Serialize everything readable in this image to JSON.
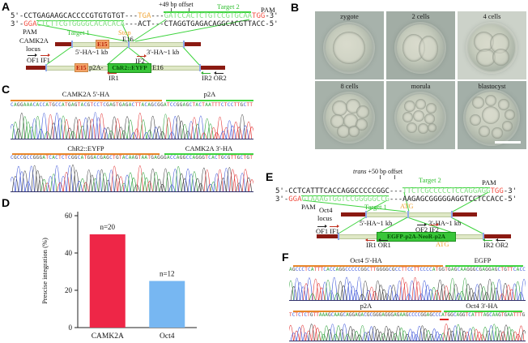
{
  "colors": {
    "target_green": "#3ed43e",
    "sequence_green": "#84e084",
    "pam_red": "#f25044",
    "stop_orange": "#f2a93e",
    "homology_bar_dark_red": "#8b1a12",
    "homology_bar_light": "#dfe8c6",
    "exon_box_orange": "#f5a268",
    "cassette_green": "#38c538",
    "base_A": "#2fa33c",
    "base_C": "#3c55d8",
    "base_G": "#3f3f3f",
    "base_T": "#e23333"
  },
  "panelA": {
    "letter": "A",
    "offset_label": "+49 bp offset",
    "target2_label": "Target 2",
    "pam_top": "PAM",
    "pam_left": "PAM",
    "target1_label": "Target 1",
    "stop_label": "Stop",
    "seq_top": {
      "p1": "5'-CCTGAGAAGCACCCCGTGTGTGT---",
      "stop": "TGA",
      "p2": "---",
      "target": "GATCCACTCTGTCCGTGCAA",
      "pam": "TGG",
      "p3": "-3'"
    },
    "seq_bottom": {
      "p1": "3'-",
      "pam": "GGA",
      "target": "CTCTTCGTGGGGCACACACA",
      "p2": "---ACT---CTAGGTGAGACAGGCACGTTACC-5'"
    },
    "locus_line1": "CAMK2A",
    "locus_line2": "locus",
    "exon_e15": "E15",
    "exon_e16": "E16",
    "ha5_label": "5'-HA~1 kb",
    "ha3_label": "3'-HA~1 kb",
    "of1": "OF1",
    "if1": "IF1",
    "if2": "IF2",
    "ir1": "IR1",
    "ir2": "IR2",
    "or2": "OR2",
    "construct_e15": "E15",
    "construct_prefix": "p2A-",
    "cassette": "ChR2::EYFP",
    "construct_e16": "E16"
  },
  "panelB": {
    "letter": "B",
    "images": [
      {
        "label": "zygote"
      },
      {
        "label": "2 cells"
      },
      {
        "label": "4 cells"
      },
      {
        "label": "8 cells"
      },
      {
        "label": "morula"
      },
      {
        "label": "blastocyst"
      }
    ]
  },
  "panelC": {
    "letter": "C",
    "blocks": [
      {
        "left_label": "CAMK2A 5'-HA",
        "right_label": "p2A",
        "sequence": "CAGGAAACACCATGCCATGAGTACGTCCTCGAGTGAGACTTACAGCGGATCCGGAGCTACTAATTTCTCCTTGCTT"
      },
      {
        "left_label": "ChR2::EYFP",
        "right_label": "CAMK2A 3'-HA",
        "sequence": "CGCCGCCGGGATCACTCTCGGCATGGACGAGCTGTACAAGTAATGAGGGACCAGGCCAGGGTCACTGCGTTGCTGT"
      }
    ]
  },
  "panelD": {
    "letter": "D"
  },
  "chart_data": {
    "type": "bar",
    "categories": [
      "CAMK2A",
      "Oct4"
    ],
    "values": [
      50,
      25
    ],
    "bar_labels": [
      "n=20",
      "n=12"
    ],
    "colors": [
      "#ee2647",
      "#77b7f2"
    ],
    "title": "",
    "xlabel": "",
    "ylabel": "Prescise integration (%)",
    "ylim": [
      0,
      60
    ],
    "yticks": [
      0,
      20,
      40,
      60
    ],
    "grid": false,
    "legend": "none"
  },
  "panelE": {
    "letter": "E",
    "offset_italic": "trans",
    "offset_label": " +50 bp offset",
    "target2_label": "Target 2",
    "pam_right": "PAM",
    "pam_left": "PAM",
    "target1_label": "Target 1",
    "atg_top": "ATG",
    "atg_bottom": "ATG",
    "seq_top": {
      "p1": "5'-CCTCATTTCACCAGGCCCCCGGC---",
      "target": "TTCTCGCCCCCTCCAGGAGG",
      "pam": "TGG",
      "p2": "-3'"
    },
    "seq_bottom": {
      "p1": "3'-",
      "pam": "GGA",
      "target": "GTAAAGTGGTCCGGGGGCCG",
      "p2": "---AAGAGCGGGGGAGGTCCTCCACC-5'"
    },
    "locus_line1": "Oct4",
    "locus_line2": "locus",
    "ha5_label": "5'-HA~1 kb",
    "ha3_label": "3'-HA~1 kb",
    "of1": "OF1",
    "if1": "IF1",
    "of2": "OF2",
    "if2": "IF2",
    "ir1": "IR1",
    "or1": "OR1",
    "ir2": "IR2",
    "or2": "OR2",
    "cassette": "EGFP-p2A-NeoR-p2A"
  },
  "panelF": {
    "letter": "F",
    "blocks": [
      {
        "left_label": "Oct4 5'-HA",
        "right_label": "EGFP",
        "sequence": "AGCCCTCATTTCACCAGGCCCCCGGCTTGGGGCGCCTTCCTTCCCCATGGTGAGCAAGGGCGAGGAGCTGTTCACC"
      },
      {
        "left_label": "p2A",
        "right_label": "Oct4 3'-HA",
        "sequence": "TCTCTCTGTTAAAGCAAGCAGGAGACGCGGGAGGGAGAAGCCCCGGAGCCCATGGCAGGTCATTTAGCAAGTGAATTTG"
      }
    ]
  }
}
